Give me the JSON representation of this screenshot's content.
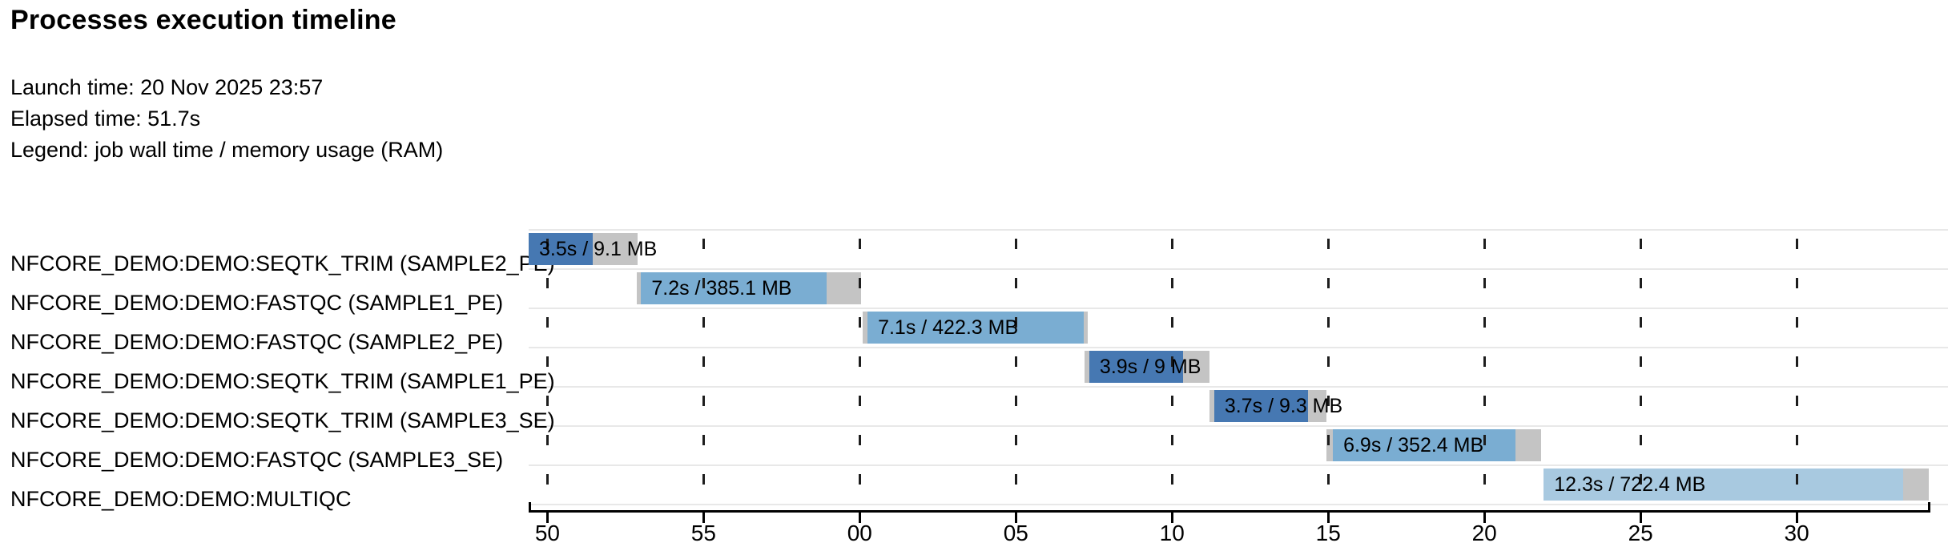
{
  "header": {
    "title": "Processes execution timeline",
    "launch_line": "Launch time: 20 Nov 2025 23:57",
    "elapsed_line": "Elapsed time: 51.7s",
    "legend_line": "Legend: job wall time / memory usage (RAM)"
  },
  "chart_data": {
    "type": "bar",
    "variant": "horizontal-gantt-timeline",
    "title": "Processes execution timeline",
    "launch_time": "20 Nov 2025 23:57",
    "elapsed_time": "51.7s",
    "legend": "job wall time / memory usage (RAM)",
    "axis": {
      "unit": "clock seconds (mm:ss ticks around 23:58:00)",
      "min_s": 49.4,
      "max_s": 94.28,
      "grid": "dashed-vertical",
      "ticks": [
        {
          "t": 50,
          "label": "50"
        },
        {
          "t": 55,
          "label": "55"
        },
        {
          "t": 60,
          "label": "00"
        },
        {
          "t": 65,
          "label": "05"
        },
        {
          "t": 70,
          "label": "10"
        },
        {
          "t": 75,
          "label": "15"
        },
        {
          "t": 80,
          "label": "20"
        },
        {
          "t": 85,
          "label": "25"
        },
        {
          "t": 90,
          "label": "30"
        }
      ]
    },
    "colors": {
      "SEQTK_TRIM": "#4678b2",
      "FASTQC": "#7aadd2",
      "MULTIQC": "#a8c9e0",
      "overhead": "#c4c4c4"
    },
    "rows": [
      {
        "process": "NFCORE_DEMO:DEMO:SEQTK_TRIM (SAMPLE2_PE)",
        "label": "3.5s / 9.1 MB",
        "wall_time": "3.5s",
        "memory": "9.1 MB",
        "color_key": "SEQTK_TRIM",
        "segments": [
          {
            "type": "run",
            "t0": 49.4,
            "t1": 51.45
          },
          {
            "type": "overhead",
            "t0": 51.45,
            "t1": 52.9
          }
        ]
      },
      {
        "process": "NFCORE_DEMO:DEMO:FASTQC (SAMPLE1_PE)",
        "label": "7.2s / 385.1 MB",
        "wall_time": "7.2s",
        "memory": "385.1 MB",
        "color_key": "FASTQC",
        "segments": [
          {
            "type": "overhead",
            "t0": 52.85,
            "t1": 53.0
          },
          {
            "type": "run",
            "t0": 53.0,
            "t1": 58.95
          },
          {
            "type": "overhead",
            "t0": 58.95,
            "t1": 60.05
          }
        ]
      },
      {
        "process": "NFCORE_DEMO:DEMO:FASTQC (SAMPLE2_PE)",
        "label": "7.1s / 422.3 MB",
        "wall_time": "7.1s",
        "memory": "422.3 MB",
        "color_key": "FASTQC",
        "segments": [
          {
            "type": "overhead",
            "t0": 60.1,
            "t1": 60.25
          },
          {
            "type": "run",
            "t0": 60.25,
            "t1": 67.18
          },
          {
            "type": "overhead",
            "t0": 67.18,
            "t1": 67.3
          }
        ]
      },
      {
        "process": "NFCORE_DEMO:DEMO:SEQTK_TRIM (SAMPLE1_PE)",
        "label": "3.9s / 9 MB",
        "wall_time": "3.9s",
        "memory": "9 MB",
        "color_key": "SEQTK_TRIM",
        "segments": [
          {
            "type": "overhead",
            "t0": 67.2,
            "t1": 67.35
          },
          {
            "type": "run",
            "t0": 67.35,
            "t1": 70.35
          },
          {
            "type": "overhead",
            "t0": 70.35,
            "t1": 71.2
          }
        ]
      },
      {
        "process": "NFCORE_DEMO:DEMO:SEQTK_TRIM (SAMPLE3_SE)",
        "label": "3.7s / 9.3 MB",
        "wall_time": "3.7s",
        "memory": "9.3 MB",
        "color_key": "SEQTK_TRIM",
        "segments": [
          {
            "type": "overhead",
            "t0": 71.2,
            "t1": 71.35
          },
          {
            "type": "run",
            "t0": 71.35,
            "t1": 74.35
          },
          {
            "type": "overhead",
            "t0": 74.35,
            "t1": 74.95
          }
        ]
      },
      {
        "process": "NFCORE_DEMO:DEMO:FASTQC (SAMPLE3_SE)",
        "label": "6.9s / 352.4 MB",
        "wall_time": "6.9s",
        "memory": "352.4 MB",
        "color_key": "FASTQC",
        "segments": [
          {
            "type": "overhead",
            "t0": 74.95,
            "t1": 75.15
          },
          {
            "type": "run",
            "t0": 75.15,
            "t1": 81.0
          },
          {
            "type": "overhead",
            "t0": 81.0,
            "t1": 81.82
          }
        ]
      },
      {
        "process": "NFCORE_DEMO:DEMO:MULTIQC",
        "label": "12.3s / 722.4 MB",
        "wall_time": "12.3s",
        "memory": "722.4 MB",
        "color_key": "MULTIQC",
        "segments": [
          {
            "type": "run",
            "t0": 81.9,
            "t1": 93.4
          },
          {
            "type": "overhead",
            "t0": 93.4,
            "t1": 94.23
          }
        ]
      }
    ]
  }
}
